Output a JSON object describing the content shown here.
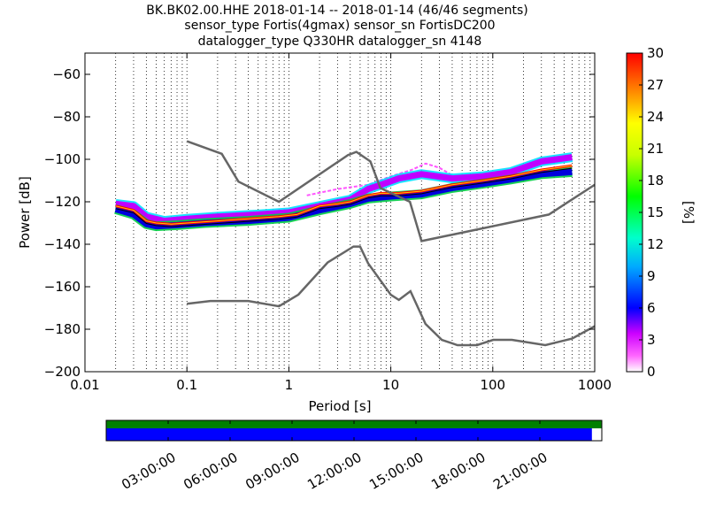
{
  "title": {
    "line1": "BK.BK02.00.HHE   2018-01-14 -- 2018-01-14  (46/46 segments)",
    "line2": "sensor_type Fortis(4gmax) sensor_sn FortisDC200",
    "line3": "datalogger_type Q330HR datalogger_sn 4148"
  },
  "chart_data": {
    "type": "heatmap",
    "xlabel": "Period [s]",
    "ylabel": "Power [dB]",
    "xscale": "log",
    "xlim": [
      0.01,
      1000
    ],
    "ylim": [
      -200,
      -50
    ],
    "x_ticks": [
      {
        "value": 0.01,
        "label": "0.01"
      },
      {
        "value": 0.1,
        "label": "0.1"
      },
      {
        "value": 1,
        "label": "1"
      },
      {
        "value": 10,
        "label": "10"
      },
      {
        "value": 100,
        "label": "100"
      },
      {
        "value": 1000,
        "label": "1000"
      }
    ],
    "y_ticks": [
      {
        "value": -60,
        "label": "−60"
      },
      {
        "value": -80,
        "label": "−80"
      },
      {
        "value": -100,
        "label": "−100"
      },
      {
        "value": -120,
        "label": "−120"
      },
      {
        "value": -140,
        "label": "−140"
      },
      {
        "value": -160,
        "label": "−160"
      },
      {
        "value": -180,
        "label": "−180"
      },
      {
        "value": -200,
        "label": "−200"
      }
    ],
    "grid": "vertical dotted at log minor ticks",
    "colorbar": {
      "label": "[%]",
      "range": [
        0,
        30
      ],
      "ticks": [
        "0",
        "3",
        "6",
        "9",
        "12",
        "15",
        "18",
        "21",
        "24",
        "27",
        "30"
      ],
      "colormap": "pqlx"
    },
    "nhnm": [
      [
        0.1,
        -168
      ],
      [
        0.17,
        -166.7
      ],
      [
        0.4,
        -166.7
      ],
      [
        0.8,
        -169.2
      ],
      [
        1.24,
        -163.7
      ],
      [
        2.4,
        -148.6
      ],
      [
        4.3,
        -141.1
      ],
      [
        5.0,
        -141.1
      ],
      [
        6.0,
        -149.0
      ],
      [
        10.0,
        -163.8
      ],
      [
        12.0,
        -166.2
      ],
      [
        15.6,
        -162.1
      ],
      [
        21.9,
        -177.5
      ],
      [
        31.6,
        -185.0
      ],
      [
        45.0,
        -187.5
      ],
      [
        70.0,
        -187.5
      ],
      [
        101.0,
        -185.0
      ],
      [
        154.0,
        -185.0
      ],
      [
        328.0,
        -187.5
      ],
      [
        600.0,
        -184.4
      ],
      [
        1000.0,
        -178.6
      ]
    ],
    "nlnm": [
      [
        0.1,
        -91.5
      ],
      [
        0.22,
        -97.4
      ],
      [
        0.32,
        -110.5
      ],
      [
        0.8,
        -120.0
      ],
      [
        3.8,
        -98.0
      ],
      [
        4.6,
        -96.5
      ],
      [
        6.3,
        -101.0
      ],
      [
        7.9,
        -113.5
      ],
      [
        15.4,
        -120.0
      ],
      [
        20.0,
        -138.5
      ],
      [
        354.8,
        -126.0
      ],
      [
        1000.0,
        -112.0
      ]
    ],
    "psd_bands": [
      {
        "name": "mode",
        "color": "#ff0000",
        "points": [
          [
            0.02,
            -122
          ],
          [
            0.03,
            -124
          ],
          [
            0.04,
            -129
          ],
          [
            0.05,
            -130
          ],
          [
            0.07,
            -130.5
          ],
          [
            0.1,
            -130
          ],
          [
            0.2,
            -129
          ],
          [
            0.4,
            -128
          ],
          [
            0.8,
            -127
          ],
          [
            1.2,
            -126
          ],
          [
            2,
            -122
          ],
          [
            3,
            -121
          ],
          [
            4,
            -120
          ],
          [
            6,
            -117
          ],
          [
            8,
            -116
          ],
          [
            12,
            -116
          ],
          [
            20,
            -115
          ],
          [
            40,
            -112
          ],
          [
            80,
            -110
          ],
          [
            150,
            -108
          ],
          [
            300,
            -105
          ],
          [
            600,
            -103
          ]
        ]
      },
      {
        "name": "upper",
        "color": "#c000ff",
        "points": [
          [
            0.02,
            -121
          ],
          [
            0.03,
            -122
          ],
          [
            0.04,
            -127
          ],
          [
            0.06,
            -129
          ],
          [
            0.1,
            -128
          ],
          [
            0.2,
            -127
          ],
          [
            0.5,
            -126
          ],
          [
            1,
            -125
          ],
          [
            2,
            -122
          ],
          [
            4,
            -119
          ],
          [
            6,
            -114
          ],
          [
            8,
            -112
          ],
          [
            12,
            -109
          ],
          [
            20,
            -107
          ],
          [
            40,
            -109
          ],
          [
            80,
            -108
          ],
          [
            150,
            -106
          ],
          [
            300,
            -101
          ],
          [
            600,
            -99
          ]
        ]
      },
      {
        "name": "lower",
        "color": "#0000dd",
        "points": [
          [
            0.02,
            -123.5
          ],
          [
            0.03,
            -126
          ],
          [
            0.04,
            -130.5
          ],
          [
            0.05,
            -131.5
          ],
          [
            0.08,
            -131
          ],
          [
            0.15,
            -130
          ],
          [
            0.4,
            -129
          ],
          [
            1,
            -127.5
          ],
          [
            2,
            -124
          ],
          [
            4,
            -121
          ],
          [
            6,
            -118.5
          ],
          [
            10,
            -117.5
          ],
          [
            20,
            -116.5
          ],
          [
            40,
            -113.5
          ],
          [
            80,
            -111.5
          ],
          [
            150,
            -109.5
          ],
          [
            300,
            -107
          ],
          [
            600,
            -106
          ]
        ]
      },
      {
        "name": "spur",
        "color": "#ff55ff",
        "points": [
          [
            1.5,
            -117
          ],
          [
            3,
            -114
          ],
          [
            6,
            -112
          ],
          [
            10,
            -108
          ],
          [
            16,
            -105
          ],
          [
            22,
            -102
          ],
          [
            30,
            -104
          ],
          [
            45,
            -109
          ]
        ]
      }
    ]
  },
  "timeline": {
    "labels": [
      "03:00:00",
      "06:00:00",
      "09:00:00",
      "12:00:00",
      "15:00:00",
      "18:00:00",
      "21:00:00"
    ],
    "data_coverage": 0.98,
    "gap_color": "#008000",
    "data_color": "#0000ff"
  }
}
